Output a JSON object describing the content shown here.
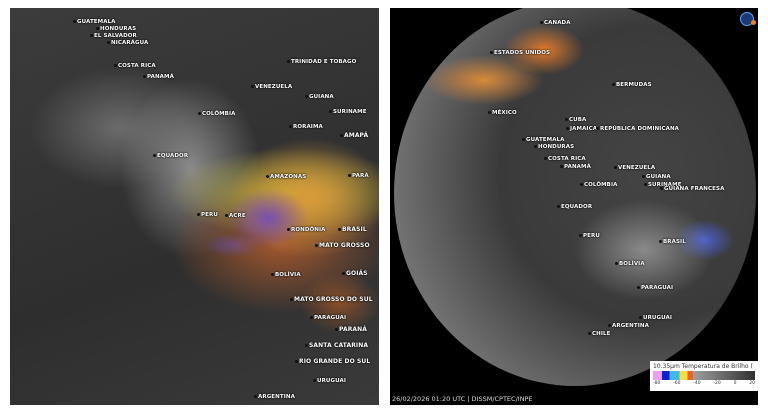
{
  "left_map": {
    "labels": [
      "GUATEMALA",
      "HONDURAS",
      "EL SALVADOR",
      "NICARÁGUA",
      "COSTA RICA",
      "PANAMÁ",
      "TRINIDAD E TOBAGO",
      "VENEZUELA",
      "GUIANA",
      "SURINAME",
      "COLÔMBIA",
      "RORAIMA",
      "AMAPÁ",
      "EQUADOR",
      "AMAZONAS",
      "PARÁ",
      "PERU",
      "ACRE",
      "RONDÔNIA",
      "BRASIL",
      "MATO GROSSO",
      "GOIÁS",
      "BOLÍVIA",
      "MATO GROSSO DO SUL",
      "PARAGUAI",
      "PARANÁ",
      "SANTA CATARINA",
      "RIO GRANDE DO SUL",
      "URUGUAI",
      "ARGENTINA"
    ]
  },
  "right_map": {
    "labels": [
      "CANADA",
      "ESTADOS UNIDOS",
      "BERMUDAS",
      "MÉXICO",
      "CUBA",
      "JAMAICA",
      "REPÚBLICA DOMINICANA",
      "GUATEMALA",
      "HONDURAS",
      "COSTA RICA",
      "PANAMÁ",
      "VENEZUELA",
      "GUIANA",
      "SURINAME",
      "GUIANA FRANCESA",
      "COLÔMBIA",
      "EQUADOR",
      "PERU",
      "BRASIL",
      "BOLÍVIA",
      "PARAGUAI",
      "URUGUAI",
      "ARGENTINA",
      "CHILE"
    ],
    "timestamp": "26/02/2026 01:20 UTC | DISSM/CPTEC/INPE",
    "logo": "INPE",
    "legend": {
      "title": "10.35µm Temperatura de Brilho (",
      "ticks": [
        "-80",
        "-60",
        "-40",
        "-20",
        "0",
        "20"
      ],
      "colors": [
        "#f09ff0",
        "#1020d0",
        "#40b8f0",
        "#f0e040",
        "#f06020",
        "#a0a0a0",
        "#303030"
      ]
    }
  }
}
